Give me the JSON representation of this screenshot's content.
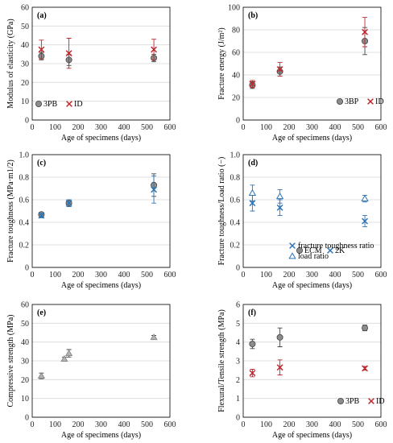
{
  "chart_data": [
    {
      "panel": "(a)",
      "type": "scatter",
      "xlabel": "Age of specimens (days)",
      "ylabel": "Modulus of elasticity (GPa)",
      "xlim": [
        0,
        600
      ],
      "ylim": [
        0,
        60
      ],
      "xticks": [
        "0",
        "100",
        "200",
        "300",
        "400",
        "500",
        "600"
      ],
      "yticks": [
        "0",
        "10",
        "20",
        "30",
        "40",
        "50",
        "60"
      ],
      "grid": true,
      "legend": "bottom-left",
      "series": [
        {
          "name": "3PB",
          "marker": "circle",
          "color": "#8c8c8c",
          "x": [
            40,
            160,
            530
          ],
          "y": [
            34,
            32,
            33
          ],
          "err": [
            2,
            3,
            2
          ]
        },
        {
          "name": "ID",
          "marker": "x",
          "color": "#c0272d",
          "x": [
            40,
            160,
            530
          ],
          "y": [
            37.5,
            35.5,
            37.5
          ],
          "err": [
            5,
            8,
            5.5
          ]
        }
      ]
    },
    {
      "panel": "(b)",
      "type": "scatter",
      "xlabel": "Age of specimens (days)",
      "ylabel": "Fracture energy (J/m²)",
      "xlim": [
        0,
        600
      ],
      "ylim": [
        0,
        100
      ],
      "xticks": [
        "0",
        "100",
        "200",
        "300",
        "400",
        "500",
        "600"
      ],
      "yticks": [
        "0",
        "20",
        "40",
        "60",
        "80",
        "100"
      ],
      "grid": true,
      "legend": "bottom-right",
      "series": [
        {
          "name": "3BP",
          "marker": "circle",
          "color": "#8c8c8c",
          "x": [
            40,
            160,
            530
          ],
          "y": [
            31,
            43,
            70
          ],
          "err": [
            3,
            4,
            12
          ]
        },
        {
          "name": "ID",
          "marker": "x",
          "color": "#c0272d",
          "x": [
            40,
            160,
            530
          ],
          "y": [
            32,
            45,
            78
          ],
          "err": [
            3,
            6,
            13
          ]
        }
      ]
    },
    {
      "panel": "(c)",
      "type": "scatter",
      "xlabel": "Age of specimens (days)",
      "ylabel": "Fracture toughness (MPa·m1/2)",
      "xlim": [
        0,
        600
      ],
      "ylim": [
        0,
        1.0
      ],
      "xticks": [
        "0",
        "100",
        "200",
        "300",
        "400",
        "500",
        "600"
      ],
      "yticks": [
        "0",
        "0.2",
        "0.4",
        "0.6",
        "0.8",
        "1.0"
      ],
      "grid": true,
      "legend": "bottom-right",
      "series": [
        {
          "name": "ECM",
          "marker": "circle",
          "color": "#8c8c8c",
          "x": [
            40,
            160,
            530
          ],
          "y": [
            0.47,
            0.57,
            0.73
          ],
          "err": [
            0.02,
            0.03,
            0.1
          ]
        },
        {
          "name": "2K",
          "marker": "x",
          "color": "#2e75b6",
          "x": [
            40,
            160,
            530
          ],
          "y": [
            0.46,
            0.57,
            0.69
          ],
          "err": [
            0.02,
            0.03,
            0.12
          ]
        }
      ]
    },
    {
      "panel": "(d)",
      "type": "scatter",
      "xlabel": "Age of specimens (days)",
      "ylabel": "Fracture toughness/Load ratio (−)",
      "xlim": [
        0,
        600
      ],
      "ylim": [
        0,
        1.0
      ],
      "xticks": [
        "0",
        "100",
        "200",
        "300",
        "400",
        "500",
        "600"
      ],
      "yticks": [
        "0",
        "0.2",
        "0.4",
        "0.6",
        "0.8",
        "1.0"
      ],
      "grid": true,
      "legend": "bottom-right",
      "series": [
        {
          "name": "fracture toughness ratio",
          "marker": "x",
          "color": "#2e75b6",
          "x": [
            40,
            160,
            530
          ],
          "y": [
            0.57,
            0.53,
            0.41
          ],
          "err": [
            0.07,
            0.07,
            0.05
          ]
        },
        {
          "name": "load ratio",
          "marker": "triangle",
          "color": "#2e75b6",
          "x": [
            40,
            160,
            530
          ],
          "y": [
            0.66,
            0.63,
            0.61
          ],
          "err": [
            0.07,
            0.06,
            0.03
          ]
        }
      ]
    },
    {
      "panel": "(e)",
      "type": "scatter",
      "xlabel": "Age of specimens (days)",
      "ylabel": "Compressive strength (MPa)",
      "xlim": [
        0,
        600
      ],
      "ylim": [
        0,
        60
      ],
      "xticks": [
        "0",
        "100",
        "200",
        "300",
        "400",
        "500",
        "600"
      ],
      "yticks": [
        "0",
        "10",
        "20",
        "30",
        "40",
        "50",
        "60"
      ],
      "grid": true,
      "legend": "none",
      "series": [
        {
          "name": "",
          "marker": "triangle",
          "color": "#8c8c8c",
          "x": [
            40,
            140,
            160,
            530
          ],
          "y": [
            22,
            31,
            34,
            42.5
          ],
          "err": [
            1.5,
            1,
            2,
            1
          ]
        }
      ]
    },
    {
      "panel": "(f)",
      "type": "scatter",
      "xlabel": "Age of specimens (days)",
      "ylabel": "Flexural/Tensile strength (MPa)",
      "xlim": [
        0,
        600
      ],
      "ylim": [
        0,
        6
      ],
      "xticks": [
        "0",
        "100",
        "200",
        "300",
        "400",
        "500",
        "600"
      ],
      "yticks": [
        "0",
        "1",
        "2",
        "3",
        "4",
        "5",
        "6"
      ],
      "grid": true,
      "legend": "bottom-right",
      "series": [
        {
          "name": "3PB",
          "marker": "circle",
          "color": "#8c8c8c",
          "x": [
            40,
            160,
            530
          ],
          "y": [
            3.9,
            4.25,
            4.75
          ],
          "err": [
            0.25,
            0.5,
            0.15
          ]
        },
        {
          "name": "ID",
          "marker": "x",
          "color": "#c0272d",
          "x": [
            40,
            160,
            530
          ],
          "y": [
            2.35,
            2.65,
            2.6
          ],
          "err": [
            0.2,
            0.4,
            0.1
          ]
        }
      ]
    }
  ]
}
